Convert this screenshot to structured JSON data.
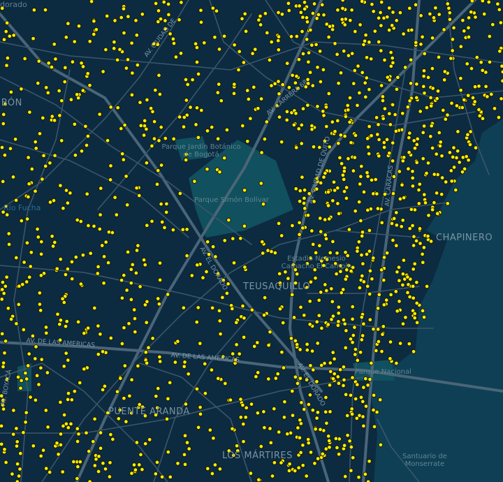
{
  "map": {
    "colors": {
      "background": "#0c2a40",
      "road": "#3b566a",
      "major_road": "#4a6578",
      "park": "#11505e",
      "hills": "#0f3f54",
      "point_fill": "#ffee00",
      "point_stroke": "#1a1a00"
    },
    "labels": {
      "el_dorado": "dorado",
      "fontibon": "FONTIBÓN",
      "rio_fucha": "Río Fucha",
      "jardin_botanico": "Parque Jardín Botánico de Bogotá",
      "simon_bolivar": "Parque Simón Bolívar",
      "chapinero": "CHAPINERO",
      "estadio": "Estadio Nemesio Camacho El Campín",
      "teusaquillo": "TEUSAQUILLO",
      "parque_nacional": "Parque Nacional",
      "puente_aranda": "PUENTE ARANDA",
      "los_martires": "LOS MÁRTIRES",
      "monserrate": "Santuario de Monserrate"
    },
    "roads": {
      "av_ciudad_de_cali": "AV. CIUDAD DE",
      "av_carrera_68": "AV. CARRERA 68",
      "av_ciudad_de_quito": "AV. CIUDAD DE QUITO",
      "av_caracas": "AV. CARACAS",
      "av_el_dorado": "AV. EL DORADO",
      "av_el_dorado_2": "AV. EL DORADO",
      "av_americas_1": "AV. DE LAS AMERICAS",
      "av_americas_2": "AV. DE LAS AMERICAS",
      "av_boyaca": "AV. BOYACÁ"
    },
    "point_layer": {
      "marker": "circle",
      "approx_count": 1500
    }
  }
}
